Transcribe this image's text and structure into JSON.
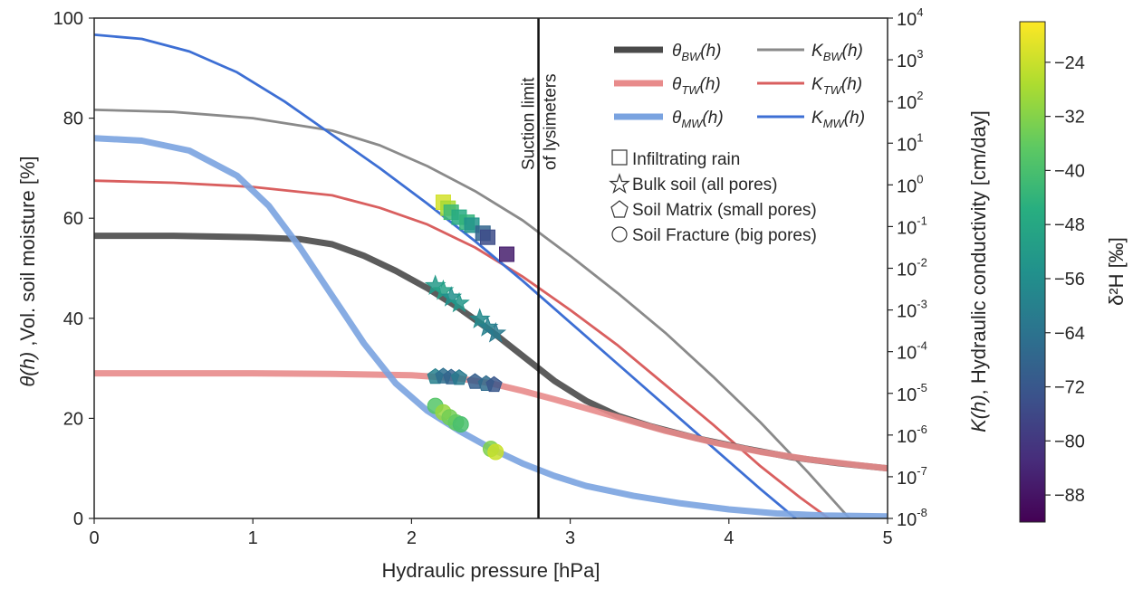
{
  "chart_data": {
    "type": "line",
    "xlabel": "Hydraulic pressure [hPa]",
    "ylabel_left_prefix": "θ(h)",
    "ylabel_left_suffix": " ,Vol. soil moisture [%]",
    "ylabel_right_prefix": "K(h)",
    "ylabel_right_suffix": ", Hydraulic conductivity [cm/day]",
    "colorbar_label": "δ²H [‰]",
    "xlim": [
      0,
      5
    ],
    "ylim_left": [
      0,
      100
    ],
    "ylim_right_log10": [
      -8,
      4
    ],
    "colorbar_range": [
      -92,
      -18
    ],
    "x_ticks": [
      "0",
      "1",
      "2",
      "3",
      "4",
      "5"
    ],
    "y_left_ticks": [
      "0",
      "20",
      "40",
      "60",
      "80",
      "100"
    ],
    "y_right_exponents": [
      "-8",
      "-7",
      "-6",
      "-5",
      "-4",
      "-3",
      "-2",
      "-1",
      "0",
      "1",
      "2",
      "3",
      "4"
    ],
    "y_right_base": "10",
    "colorbar_ticks": [
      "-24",
      "-32",
      "-40",
      "-48",
      "-56",
      "-64",
      "-72",
      "-80",
      "-88"
    ],
    "colors": {
      "bw": "#4a4a4a",
      "tw": "#e88b8b",
      "mw": "#7aa3e0",
      "k_bw": "#8a8a8a",
      "k_tw": "#d95f5f",
      "k_mw": "#3d6fd4",
      "vline": "#111111"
    },
    "vline": {
      "x": 2.8,
      "label_line1": "Suction limit",
      "label_line2": "of lysimeters"
    },
    "legend": {
      "theta_bw": "θ",
      "theta_bw_sub": "BW",
      "theta_tw": "θ",
      "theta_tw_sub": "TW",
      "theta_mw": "θ",
      "theta_mw_sub": "MW",
      "k_bw": "K",
      "k_bw_sub": "BW",
      "k_tw": "K",
      "k_tw_sub": "TW",
      "k_mw": "K",
      "k_mw_sub": "MW",
      "arg": "(h)",
      "marker_square": "Infiltrating rain",
      "marker_star": "Bulk soil (all pores)",
      "marker_pentagon": "Soil Matrix (small pores)",
      "marker_circle": "Soil Fracture (big pores)"
    },
    "series": [
      {
        "name": "θBW(h)",
        "role": "theta",
        "color_key": "bw",
        "x": [
          0,
          0.5,
          1.0,
          1.3,
          1.5,
          1.7,
          1.9,
          2.1,
          2.3,
          2.5,
          2.7,
          2.9,
          3.1,
          3.3,
          3.5,
          3.8,
          4.1,
          4.4,
          4.7,
          5.0
        ],
        "y": [
          56.5,
          56.5,
          56.2,
          55.8,
          54.8,
          52.5,
          49.5,
          46.0,
          42.0,
          37.5,
          32.5,
          27.5,
          23.5,
          20.5,
          18.5,
          16.0,
          14.0,
          12.2,
          11.0,
          10.0
        ]
      },
      {
        "name": "θTW(h)",
        "role": "theta",
        "color_key": "tw",
        "x": [
          0,
          0.5,
          1.0,
          1.5,
          2.0,
          2.3,
          2.5,
          2.7,
          2.9,
          3.1,
          3.3,
          3.6,
          3.9,
          4.2,
          4.5,
          4.8,
          5.0
        ],
        "y": [
          29.0,
          29.0,
          29.0,
          28.9,
          28.6,
          28.0,
          27.0,
          25.5,
          23.8,
          22.0,
          20.2,
          17.5,
          15.2,
          13.3,
          11.8,
          10.7,
          10.0
        ]
      },
      {
        "name": "θMW(h)",
        "role": "theta",
        "color_key": "mw",
        "x": [
          0,
          0.3,
          0.6,
          0.9,
          1.1,
          1.3,
          1.5,
          1.7,
          1.9,
          2.1,
          2.3,
          2.5,
          2.7,
          2.9,
          3.1,
          3.4,
          3.7,
          4.0,
          4.3,
          4.6,
          5.0
        ],
        "y": [
          76.0,
          75.5,
          73.5,
          68.5,
          62.5,
          54.0,
          44.5,
          35.0,
          27.0,
          21.5,
          17.5,
          14.0,
          11.0,
          8.5,
          6.5,
          4.5,
          3.0,
          1.8,
          1.0,
          0.6,
          0.4
        ]
      },
      {
        "name": "KBW(h)",
        "role": "k",
        "color_key": "k_bw",
        "x": [
          0,
          0.5,
          1.0,
          1.5,
          1.8,
          2.1,
          2.4,
          2.7,
          3.0,
          3.3,
          3.6,
          3.9,
          4.2,
          4.5,
          4.76
        ],
        "y": [
          1.8,
          1.75,
          1.6,
          1.3,
          0.95,
          0.45,
          -0.15,
          -0.85,
          -1.7,
          -2.6,
          -3.55,
          -4.6,
          -5.7,
          -6.9,
          -8.0
        ]
      },
      {
        "name": "KTW(h)",
        "role": "k",
        "color_key": "k_tw",
        "x": [
          0,
          0.5,
          1.0,
          1.5,
          1.8,
          2.1,
          2.4,
          2.7,
          3.0,
          3.3,
          3.6,
          3.9,
          4.2,
          4.45,
          4.63
        ],
        "y": [
          0.1,
          0.05,
          -0.05,
          -0.25,
          -0.55,
          -0.95,
          -1.5,
          -2.2,
          -3.0,
          -3.85,
          -4.8,
          -5.75,
          -6.75,
          -7.5,
          -8.0
        ]
      },
      {
        "name": "KMW(h)",
        "role": "k",
        "color_key": "k_mw",
        "x": [
          0,
          0.3,
          0.6,
          0.9,
          1.2,
          1.5,
          1.8,
          2.1,
          2.4,
          2.7,
          3.0,
          3.3,
          3.6,
          3.9,
          4.2,
          4.42
        ],
        "y": [
          3.6,
          3.5,
          3.2,
          2.7,
          2.0,
          1.2,
          0.4,
          -0.45,
          -1.35,
          -2.3,
          -3.3,
          -4.3,
          -5.3,
          -6.3,
          -7.3,
          -8.0
        ]
      }
    ],
    "markers": [
      {
        "shape": "square",
        "x": 2.2,
        "y": 63.2,
        "c": -23
      },
      {
        "shape": "square",
        "x": 2.23,
        "y": 62.0,
        "c": -28
      },
      {
        "shape": "square",
        "x": 2.25,
        "y": 61.2,
        "c": -42
      },
      {
        "shape": "square",
        "x": 2.3,
        "y": 60.2,
        "c": -47
      },
      {
        "shape": "square",
        "x": 2.35,
        "y": 59.2,
        "c": -44
      },
      {
        "shape": "square",
        "x": 2.38,
        "y": 58.6,
        "c": -54
      },
      {
        "shape": "square",
        "x": 2.45,
        "y": 57.0,
        "c": -68
      },
      {
        "shape": "square",
        "x": 2.48,
        "y": 56.2,
        "c": -75
      },
      {
        "shape": "square",
        "x": 2.6,
        "y": 52.8,
        "c": -86
      },
      {
        "shape": "star",
        "x": 2.15,
        "y": 46.5,
        "c": -52
      },
      {
        "shape": "star",
        "x": 2.2,
        "y": 45.5,
        "c": -50
      },
      {
        "shape": "star",
        "x": 2.25,
        "y": 44.2,
        "c": -55
      },
      {
        "shape": "star",
        "x": 2.3,
        "y": 43.0,
        "c": -53
      },
      {
        "shape": "star",
        "x": 2.43,
        "y": 39.8,
        "c": -57
      },
      {
        "shape": "star",
        "x": 2.48,
        "y": 38.2,
        "c": -60
      },
      {
        "shape": "star",
        "x": 2.53,
        "y": 37.0,
        "c": -62
      },
      {
        "shape": "pentagon",
        "x": 2.15,
        "y": 28.3,
        "c": -60
      },
      {
        "shape": "pentagon",
        "x": 2.2,
        "y": 28.4,
        "c": -65
      },
      {
        "shape": "pentagon",
        "x": 2.25,
        "y": 28.2,
        "c": -68
      },
      {
        "shape": "pentagon",
        "x": 2.3,
        "y": 28.1,
        "c": -62
      },
      {
        "shape": "pentagon",
        "x": 2.4,
        "y": 27.3,
        "c": -70
      },
      {
        "shape": "pentagon",
        "x": 2.47,
        "y": 26.9,
        "c": -66
      },
      {
        "shape": "pentagon",
        "x": 2.52,
        "y": 26.7,
        "c": -72
      },
      {
        "shape": "circle",
        "x": 2.15,
        "y": 22.5,
        "c": -38
      },
      {
        "shape": "circle",
        "x": 2.2,
        "y": 21.2,
        "c": -30
      },
      {
        "shape": "circle",
        "x": 2.24,
        "y": 20.2,
        "c": -34
      },
      {
        "shape": "circle",
        "x": 2.28,
        "y": 19.2,
        "c": -36
      },
      {
        "shape": "circle",
        "x": 2.31,
        "y": 18.8,
        "c": -40
      },
      {
        "shape": "circle",
        "x": 2.5,
        "y": 13.9,
        "c": -33
      },
      {
        "shape": "circle",
        "x": 2.53,
        "y": 13.3,
        "c": -24
      }
    ]
  }
}
